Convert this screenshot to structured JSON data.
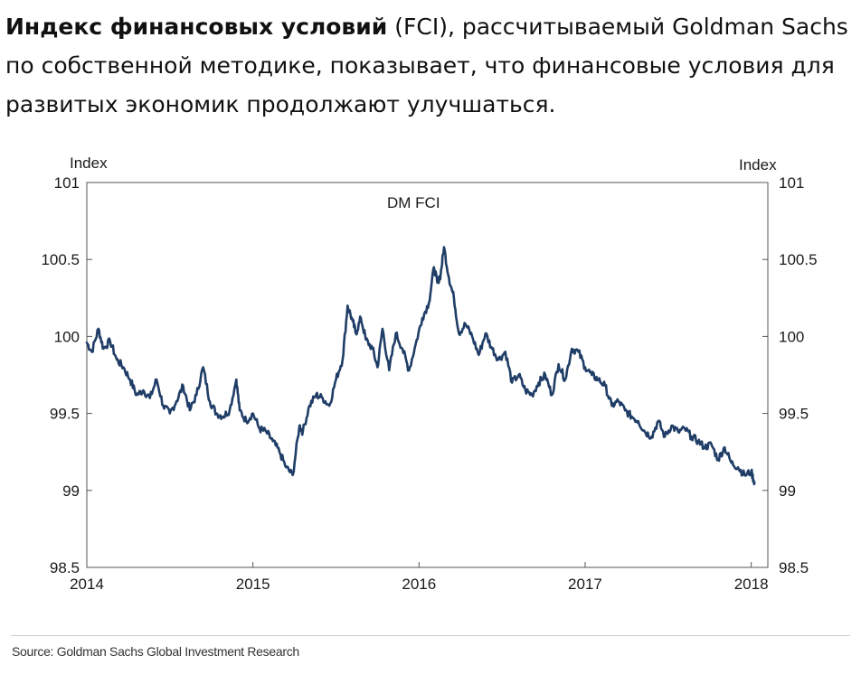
{
  "caption": {
    "bold": "Индекс финансовых условий",
    "rest": " (FCI), рассчитываемый Goldman Sachs по собственной методике, показывает, что финансовые условия для развитых экономик продолжают улучшаться."
  },
  "chart_data": {
    "type": "line",
    "title": "DM FCI",
    "ylabel_left": "Index",
    "ylabel_right": "Index",
    "ylim": [
      98.5,
      101
    ],
    "yticks": [
      "98.5",
      "99",
      "99.5",
      "100",
      "100.5",
      "101"
    ],
    "xlim": [
      2014.0,
      2018.1
    ],
    "xticks": [
      "2014",
      "2015",
      "2016",
      "2017",
      "2018"
    ],
    "grid": false,
    "color": "#1f3d66",
    "series": [
      {
        "x": [
          2014.0,
          2014.03,
          2014.07,
          2014.1,
          2014.14,
          2014.18,
          2014.22,
          2014.26,
          2014.3,
          2014.34,
          2014.38,
          2014.42,
          2014.46,
          2014.5,
          2014.54,
          2014.58,
          2014.62,
          2014.66,
          2014.7,
          2014.74,
          2014.78,
          2014.82,
          2014.86,
          2014.9,
          2014.92,
          2014.96,
          2015.0,
          2015.04,
          2015.08,
          2015.12,
          2015.16,
          2015.2,
          2015.24,
          2015.28,
          2015.3,
          2015.34,
          2015.38,
          2015.42,
          2015.46,
          2015.5,
          2015.54,
          2015.57,
          2015.6,
          2015.62,
          2015.65,
          2015.68,
          2015.72,
          2015.75,
          2015.78,
          2015.82,
          2015.86,
          2015.9,
          2015.94,
          2015.98,
          2016.02,
          2016.06,
          2016.09,
          2016.11,
          2016.13,
          2016.15,
          2016.18,
          2016.21,
          2016.24,
          2016.28,
          2016.32,
          2016.36,
          2016.4,
          2016.44,
          2016.48,
          2016.52,
          2016.56,
          2016.6,
          2016.64,
          2016.68,
          2016.72,
          2016.76,
          2016.8,
          2016.84,
          2016.88,
          2016.92,
          2016.96,
          2017.0,
          2017.04,
          2017.08,
          2017.12,
          2017.16,
          2017.2,
          2017.24,
          2017.28,
          2017.32,
          2017.36,
          2017.4,
          2017.44,
          2017.48,
          2017.52,
          2017.56,
          2017.6,
          2017.64,
          2017.68,
          2017.72,
          2017.76,
          2017.8,
          2017.84,
          2017.88,
          2017.92,
          2017.96,
          2018.0,
          2018.02
        ],
        "values": [
          99.96,
          99.9,
          100.05,
          99.92,
          99.97,
          99.85,
          99.8,
          99.72,
          99.62,
          99.65,
          99.6,
          99.72,
          99.55,
          99.5,
          99.58,
          99.68,
          99.52,
          99.62,
          99.8,
          99.58,
          99.5,
          99.48,
          99.52,
          99.72,
          99.52,
          99.45,
          99.5,
          99.4,
          99.38,
          99.32,
          99.25,
          99.15,
          99.1,
          99.42,
          99.38,
          99.55,
          99.62,
          99.6,
          99.55,
          99.72,
          99.85,
          100.2,
          100.1,
          100.02,
          100.12,
          99.98,
          99.92,
          99.8,
          100.05,
          99.78,
          100.02,
          99.92,
          99.78,
          99.95,
          100.12,
          100.22,
          100.45,
          100.35,
          100.4,
          100.58,
          100.38,
          100.25,
          100.02,
          100.08,
          100.0,
          99.88,
          100.02,
          99.92,
          99.85,
          99.9,
          99.7,
          99.75,
          99.65,
          99.62,
          99.7,
          99.75,
          99.62,
          99.82,
          99.72,
          99.92,
          99.9,
          99.8,
          99.75,
          99.72,
          99.68,
          99.55,
          99.58,
          99.52,
          99.48,
          99.45,
          99.38,
          99.35,
          99.45,
          99.35,
          99.42,
          99.38,
          99.4,
          99.35,
          99.32,
          99.28,
          99.3,
          99.2,
          99.28,
          99.18,
          99.15,
          99.1,
          99.12,
          99.05
        ]
      }
    ],
    "source": "Source: Goldman Sachs Global Investment Research"
  }
}
